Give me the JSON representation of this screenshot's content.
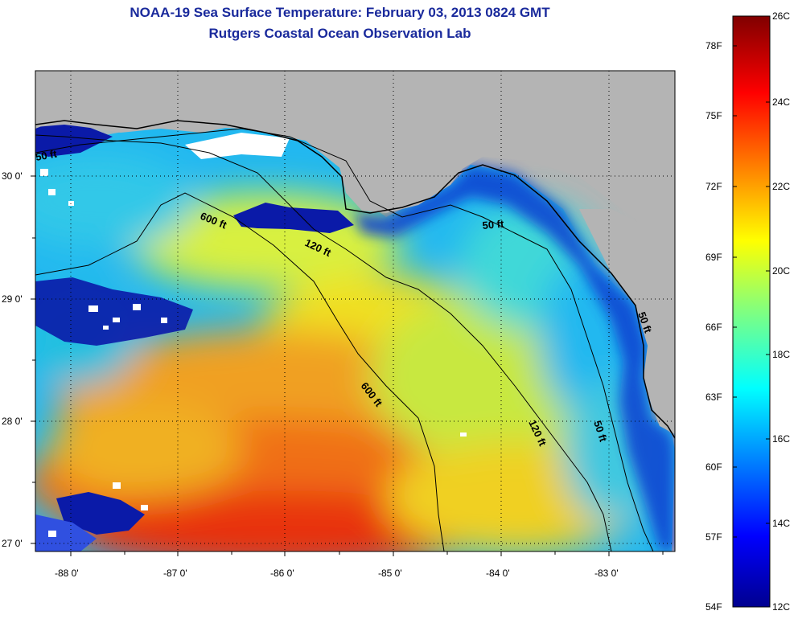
{
  "header": {
    "title": "NOAA-19 Sea Surface Temperature:  February 03, 2013 0824 GMT",
    "subtitle": "Rutgers Coastal Ocean Observation Lab"
  },
  "map": {
    "lon_labels": [
      "-88 0'",
      "-87 0'",
      "-86 0'",
      "-85 0'",
      "-84 0'",
      "-83 0'"
    ],
    "lat_labels": [
      "30 0'",
      "29 0'",
      "28 0'",
      "27 0'"
    ],
    "contour_labels": [
      "600 ft",
      "120 ft",
      "50 ft",
      "600 ft",
      "120 ft",
      "50 ft",
      "50 ft",
      "50 ft"
    ],
    "colors": {
      "land": "#b4b4b4",
      "cloud": "#ffffff"
    }
  },
  "colorbar": {
    "f_labels": [
      "78F",
      "75F",
      "72F",
      "69F",
      "66F",
      "63F",
      "60F",
      "57F",
      "54F"
    ],
    "c_labels": [
      "26C",
      "24C",
      "22C",
      "20C",
      "18C",
      "16C",
      "14C",
      "12C"
    ],
    "colormap": "jet"
  }
}
